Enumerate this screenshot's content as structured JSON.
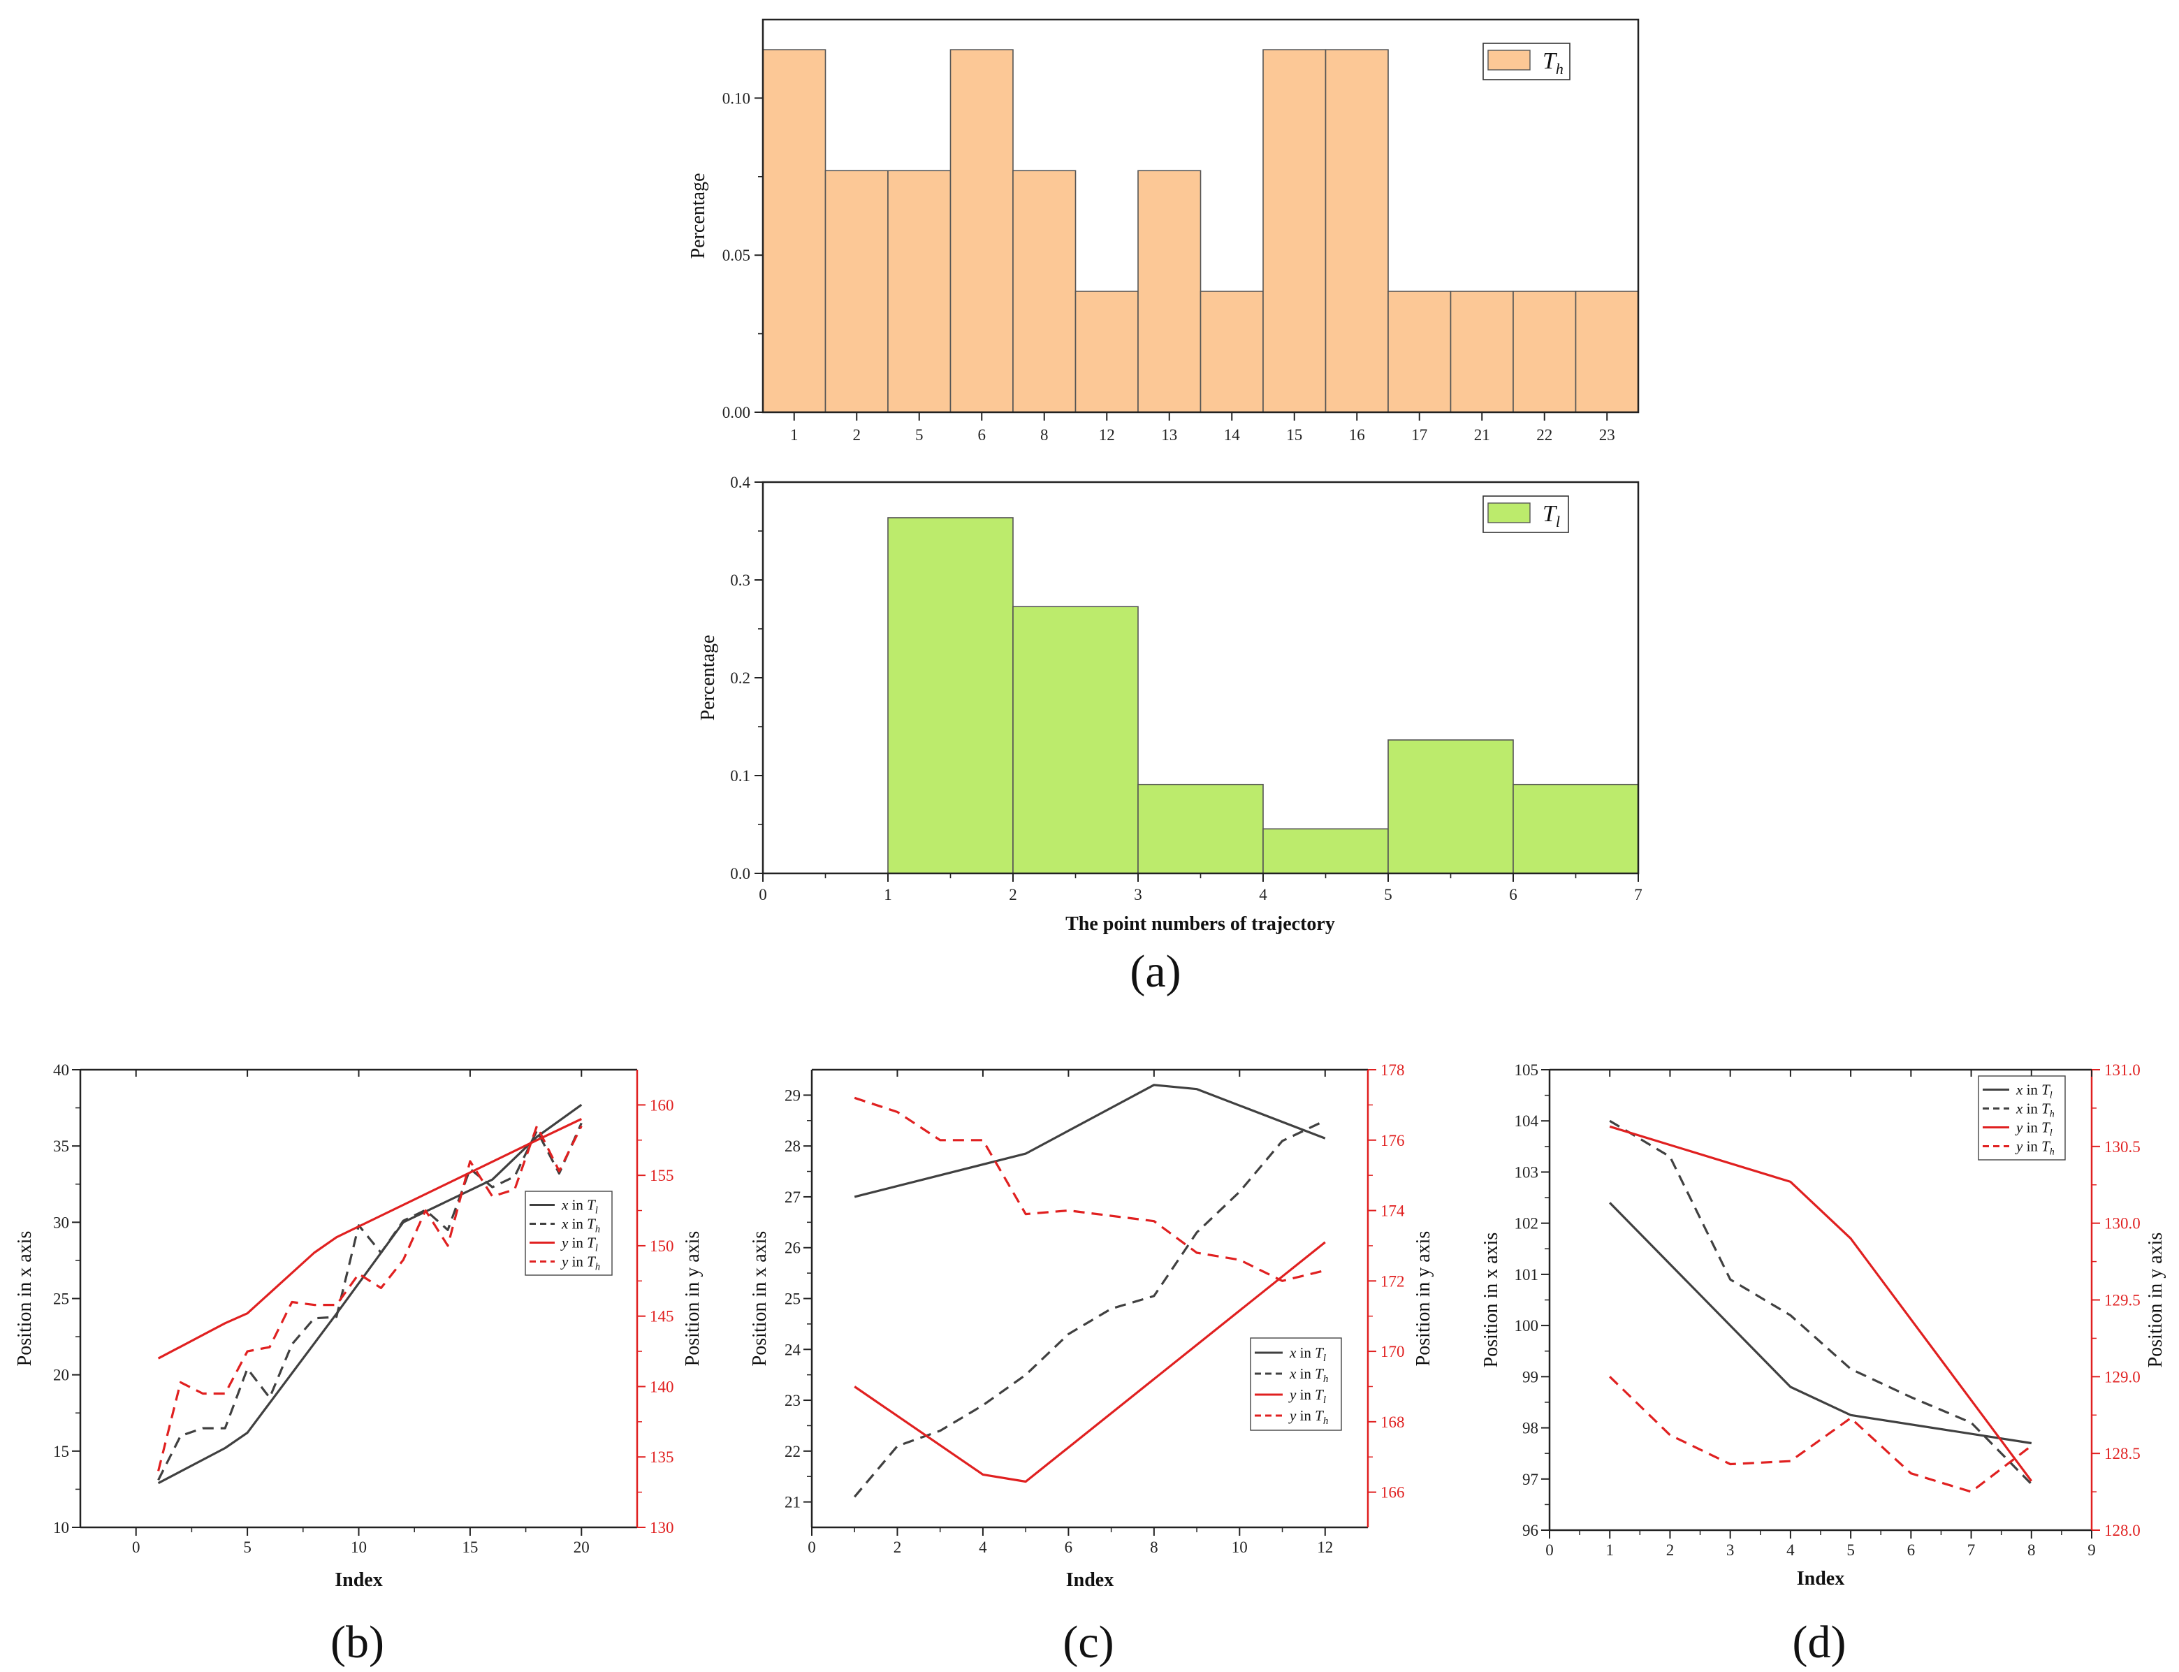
{
  "chart_data": [
    {
      "id": "a1",
      "type": "bar",
      "panel": "",
      "categories": [
        "1",
        "2",
        "5",
        "6",
        "8",
        "12",
        "13",
        "14",
        "15",
        "16",
        "17",
        "21",
        "22",
        "23"
      ],
      "values": [
        0.1154,
        0.0769,
        0.0769,
        0.1154,
        0.0769,
        0.0385,
        0.0769,
        0.0385,
        0.1154,
        0.1154,
        0.0385,
        0.0385,
        0.0385,
        0.0385
      ],
      "yticks": [
        0.0,
        0.05,
        0.1
      ],
      "ytick_labels": [
        "0.00",
        "0.05",
        "0.10"
      ],
      "ylim": [
        0,
        0.125
      ],
      "ylabel": "Percentage",
      "xlabel": "",
      "legend": {
        "symbol": "T",
        "sub": "h"
      },
      "color": "#fcc896"
    },
    {
      "id": "a2",
      "type": "bar",
      "panel": "(a)",
      "bins": [
        [
          1,
          2
        ],
        [
          2,
          3
        ],
        [
          3,
          4
        ],
        [
          4,
          5
        ],
        [
          5,
          6
        ],
        [
          6,
          7
        ]
      ],
      "values": [
        0.3636,
        0.2727,
        0.0909,
        0.0455,
        0.1364,
        0.0909
      ],
      "xlim": [
        0,
        7
      ],
      "xticks": [
        0,
        1,
        2,
        3,
        4,
        5,
        6,
        7
      ],
      "ylim": [
        0,
        0.4
      ],
      "yticks": [
        0.0,
        0.1,
        0.2,
        0.3,
        0.4
      ],
      "ytick_labels": [
        "0.0",
        "0.1",
        "0.2",
        "0.3",
        "0.4"
      ],
      "ylabel": "Percentage",
      "xlabel": "The point numbers of trajectory",
      "legend": {
        "symbol": "T",
        "sub": "l"
      },
      "color": "#bceb6c"
    },
    {
      "id": "b",
      "type": "line",
      "panel": "(b)",
      "xlabel": "Index",
      "ylabel": "Position in x axis",
      "ylabel2": "Position in y axis",
      "xlim": [
        -2.5,
        22.5
      ],
      "xticks": [
        0,
        5,
        10,
        15,
        20
      ],
      "ylim": [
        10,
        40
      ],
      "yticks": [
        10,
        15,
        20,
        25,
        30,
        35,
        40
      ],
      "ylim2": [
        130,
        162.5
      ],
      "yticks2": [
        130,
        135,
        140,
        145,
        150,
        155,
        160
      ],
      "legend_pos": "middle-right",
      "series": [
        {
          "name": "x in T_l",
          "axis": "left",
          "style": "solid",
          "color": "#404040",
          "x": [
            1,
            4,
            5,
            9,
            12,
            16,
            18,
            20
          ],
          "y": [
            12.9,
            15.2,
            16.2,
            24.0,
            30.0,
            32.8,
            35.6,
            37.7
          ]
        },
        {
          "name": "x in T_h",
          "axis": "left",
          "style": "dashed",
          "color": "#404040",
          "x": [
            1,
            2,
            3,
            4,
            5,
            6,
            7,
            8,
            9,
            10,
            11,
            12,
            13,
            14,
            15,
            16,
            17,
            18,
            19,
            20
          ],
          "y": [
            13.1,
            16.0,
            16.5,
            16.5,
            20.4,
            18.5,
            22.0,
            23.7,
            23.8,
            29.8,
            28.0,
            30.1,
            30.8,
            29.5,
            33.5,
            32.3,
            33.0,
            36.0,
            33.2,
            36.5
          ]
        },
        {
          "name": "y in T_l",
          "axis": "right",
          "style": "solid",
          "color": "#e02020",
          "x": [
            1,
            4,
            5,
            8,
            9,
            18,
            20
          ],
          "y": [
            142.0,
            144.5,
            145.2,
            149.5,
            150.6,
            157.5,
            159.0
          ]
        },
        {
          "name": "y in T_h",
          "axis": "right",
          "style": "dashed",
          "color": "#e02020",
          "x": [
            1,
            2,
            3,
            4,
            5,
            6,
            7,
            8,
            9,
            10,
            11,
            12,
            13,
            14,
            15,
            16,
            17,
            18,
            19,
            20
          ],
          "y": [
            134.0,
            140.3,
            139.5,
            139.5,
            142.5,
            142.8,
            146.0,
            145.8,
            145.8,
            148.0,
            147.0,
            149.0,
            152.5,
            150.0,
            156.0,
            153.5,
            154.0,
            158.5,
            155.3,
            158.5
          ]
        }
      ],
      "legend_labels": [
        {
          "pre": "x",
          "mid": " in ",
          "sym": "T",
          "sub": "l"
        },
        {
          "pre": "x",
          "mid": " in ",
          "sym": "T",
          "sub": "h"
        },
        {
          "pre": "y",
          "mid": " in ",
          "sym": "T",
          "sub": "l"
        },
        {
          "pre": "y",
          "mid": " in ",
          "sym": "T",
          "sub": "h"
        }
      ]
    },
    {
      "id": "c",
      "type": "line",
      "panel": "(c)",
      "xlabel": "Index",
      "ylabel": "Position in x axis",
      "ylabel2": "Position in y axis",
      "xlim": [
        0,
        13
      ],
      "xticks": [
        0,
        2,
        4,
        6,
        8,
        10,
        12
      ],
      "ylim": [
        20.5,
        29.5
      ],
      "yticks": [
        21,
        22,
        23,
        24,
        25,
        26,
        27,
        28,
        29
      ],
      "ylim2": [
        165,
        178
      ],
      "yticks2": [
        166,
        168,
        170,
        172,
        174,
        176,
        178
      ],
      "legend_pos": "lower-right",
      "series": [
        {
          "name": "x in T_l",
          "axis": "left",
          "style": "solid",
          "color": "#404040",
          "x": [
            1,
            5,
            8,
            9,
            12
          ],
          "y": [
            27.0,
            27.85,
            29.2,
            29.12,
            28.15
          ]
        },
        {
          "name": "x in T_h",
          "axis": "left",
          "style": "dashed",
          "color": "#404040",
          "x": [
            1,
            2,
            3,
            4,
            5,
            6,
            7,
            8,
            9,
            10,
            11,
            12
          ],
          "y": [
            21.1,
            22.1,
            22.4,
            22.9,
            23.5,
            24.3,
            24.8,
            25.05,
            26.3,
            27.1,
            28.1,
            28.5
          ]
        },
        {
          "name": "y in T_l",
          "axis": "right",
          "style": "solid",
          "color": "#e02020",
          "x": [
            1,
            4,
            5,
            12
          ],
          "y": [
            169.0,
            166.5,
            166.3,
            173.1
          ]
        },
        {
          "name": "y in T_h",
          "axis": "right",
          "style": "dashed",
          "color": "#e02020",
          "x": [
            1,
            2,
            3,
            4,
            5,
            6,
            7,
            8,
            9,
            10,
            11,
            12
          ],
          "y": [
            177.2,
            176.8,
            176.0,
            176.0,
            173.9,
            174.0,
            173.85,
            173.7,
            172.8,
            172.6,
            172.0,
            172.3
          ]
        }
      ],
      "legend_labels": [
        {
          "pre": "x",
          "mid": " in ",
          "sym": "T",
          "sub": "l"
        },
        {
          "pre": "x",
          "mid": " in ",
          "sym": "T",
          "sub": "h"
        },
        {
          "pre": "y",
          "mid": " in ",
          "sym": "T",
          "sub": "l"
        },
        {
          "pre": "y",
          "mid": " in ",
          "sym": "T",
          "sub": "h"
        }
      ]
    },
    {
      "id": "d",
      "type": "line",
      "panel": "(d)",
      "xlabel": "Index",
      "ylabel": "Position in x axis",
      "ylabel2": "Position in y axis",
      "xlim": [
        0,
        9
      ],
      "xticks": [
        0,
        1,
        2,
        3,
        4,
        5,
        6,
        7,
        8,
        9
      ],
      "ylim": [
        96,
        105
      ],
      "yticks": [
        96,
        97,
        98,
        99,
        100,
        101,
        102,
        103,
        104,
        105
      ],
      "ylim2": [
        128.0,
        131.0
      ],
      "yticks2": [
        128.0,
        128.5,
        129.0,
        129.5,
        130.0,
        130.5,
        131.0
      ],
      "ytick2_labels": [
        "128.0",
        "128.5",
        "129.0",
        "129.5",
        "130.0",
        "130.5",
        "131.0"
      ],
      "legend_pos": "top-right",
      "series": [
        {
          "name": "x in T_l",
          "axis": "left",
          "style": "solid",
          "color": "#404040",
          "x": [
            1,
            4,
            5,
            8
          ],
          "y": [
            102.4,
            98.8,
            98.25,
            97.7
          ]
        },
        {
          "name": "x in T_h",
          "axis": "left",
          "style": "dashed",
          "color": "#404040",
          "x": [
            1,
            2,
            3,
            4,
            5,
            6,
            7,
            8
          ],
          "y": [
            104.0,
            103.3,
            100.9,
            100.2,
            99.15,
            98.6,
            98.1,
            96.9
          ]
        },
        {
          "name": "y in T_l",
          "axis": "right",
          "style": "solid",
          "color": "#e02020",
          "x": [
            1,
            4,
            5,
            8
          ],
          "y": [
            130.63,
            130.27,
            129.9,
            128.32
          ]
        },
        {
          "name": "y in T_h",
          "axis": "right",
          "style": "dashed",
          "color": "#e02020",
          "x": [
            1,
            2,
            3,
            4,
            5,
            6,
            7,
            8
          ],
          "y": [
            129.0,
            128.62,
            128.43,
            128.45,
            128.73,
            128.37,
            128.25,
            128.55
          ]
        }
      ],
      "legend_labels": [
        {
          "pre": "x",
          "mid": " in ",
          "sym": "T",
          "sub": "l"
        },
        {
          "pre": "x",
          "mid": " in ",
          "sym": "T",
          "sub": "h"
        },
        {
          "pre": "y",
          "mid": " in ",
          "sym": "T",
          "sub": "l"
        },
        {
          "pre": "y",
          "mid": " in ",
          "sym": "T",
          "sub": "h"
        }
      ]
    }
  ]
}
